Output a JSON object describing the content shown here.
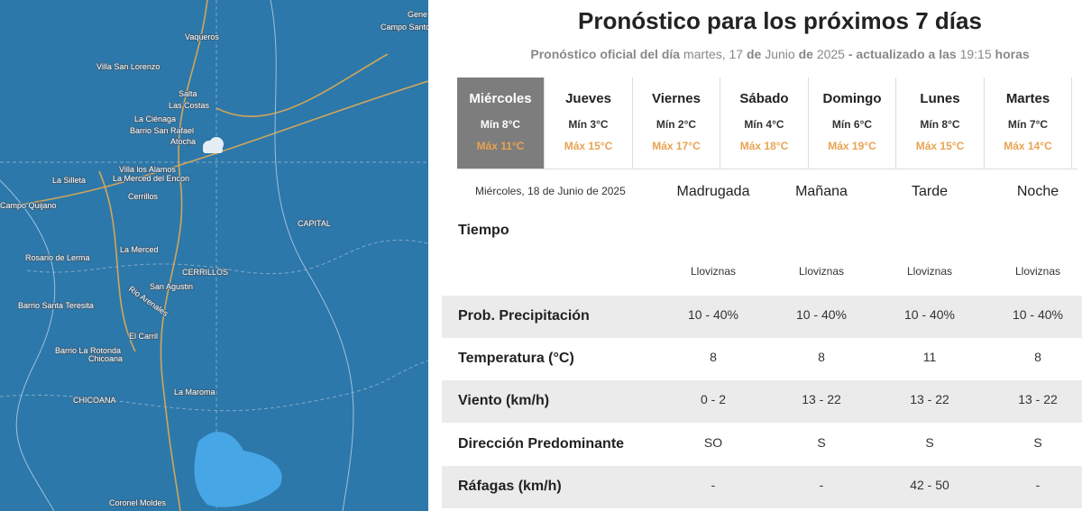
{
  "map": {
    "labels": [
      "Gene",
      "Campo Santo",
      "Vaqueros",
      "Villa San Lorenzo",
      "Salta",
      "Las Costas",
      "La Ciénaga",
      "Barrio San Rafael",
      "Atocha",
      "Villa los Alamos",
      "La Merced del Encon",
      "Cerrillos",
      "La Silleta",
      "Campo Quijano",
      "CAPITAL",
      "La Merced",
      "Rosario de Lerma",
      "CERRILLOS",
      "San Agustin",
      "Rio Arenales",
      "Barrio Santa Teresita",
      "El Carril",
      "Barrio La Rotonda",
      "Chicoana",
      "La Maroma",
      "CHICOANA",
      "Coronel Moldes"
    ]
  },
  "header": {
    "title": "Pronóstico para los próximos 7 días",
    "subtitle": [
      "Pronóstico oficial del día",
      "martes, 17",
      "de",
      "Junio",
      "de",
      "2025",
      "- actualizado a las",
      "19:15",
      "horas"
    ]
  },
  "days": [
    {
      "name": "Miércoles",
      "min": "Mín 8°C",
      "max": "Máx 11°C"
    },
    {
      "name": "Jueves",
      "min": "Mín 3°C",
      "max": "Máx 15°C"
    },
    {
      "name": "Viernes",
      "min": "Mín 2°C",
      "max": "Máx 17°C"
    },
    {
      "name": "Sábado",
      "min": "Mín 4°C",
      "max": "Máx 18°C"
    },
    {
      "name": "Domingo",
      "min": "Mín 6°C",
      "max": "Máx 19°C"
    },
    {
      "name": "Lunes",
      "min": "Mín 8°C",
      "max": "Máx 15°C"
    },
    {
      "name": "Martes",
      "min": "Mín 7°C",
      "max": "Máx 14°C"
    }
  ],
  "detail": {
    "date": "Miércoles, 18 de Junio de 2025",
    "weather_label": "Tiempo",
    "periods": [
      {
        "name": "Madrugada",
        "weather": "Lloviznas"
      },
      {
        "name": "Mañana",
        "weather": "Lloviznas"
      },
      {
        "name": "Tarde",
        "weather": "Lloviznas"
      },
      {
        "name": "Noche",
        "weather": "Lloviznas"
      }
    ],
    "rows": [
      {
        "label": "Prob. Precipitación",
        "values": [
          "10 - 40%",
          "10 - 40%",
          "10 - 40%",
          "10 - 40%"
        ]
      },
      {
        "label": "Temperatura (°C)",
        "values": [
          "8",
          "8",
          "11",
          "8"
        ]
      },
      {
        "label": "Viento (km/h)",
        "values": [
          "0 - 2",
          "13 - 22",
          "13 - 22",
          "13 - 22"
        ]
      },
      {
        "label": "Dirección Predominante",
        "values": [
          "SO",
          "S",
          "S",
          "S"
        ]
      },
      {
        "label": "Ráfagas (km/h)",
        "values": [
          "-",
          "-",
          "42 - 50",
          "-"
        ]
      }
    ]
  }
}
